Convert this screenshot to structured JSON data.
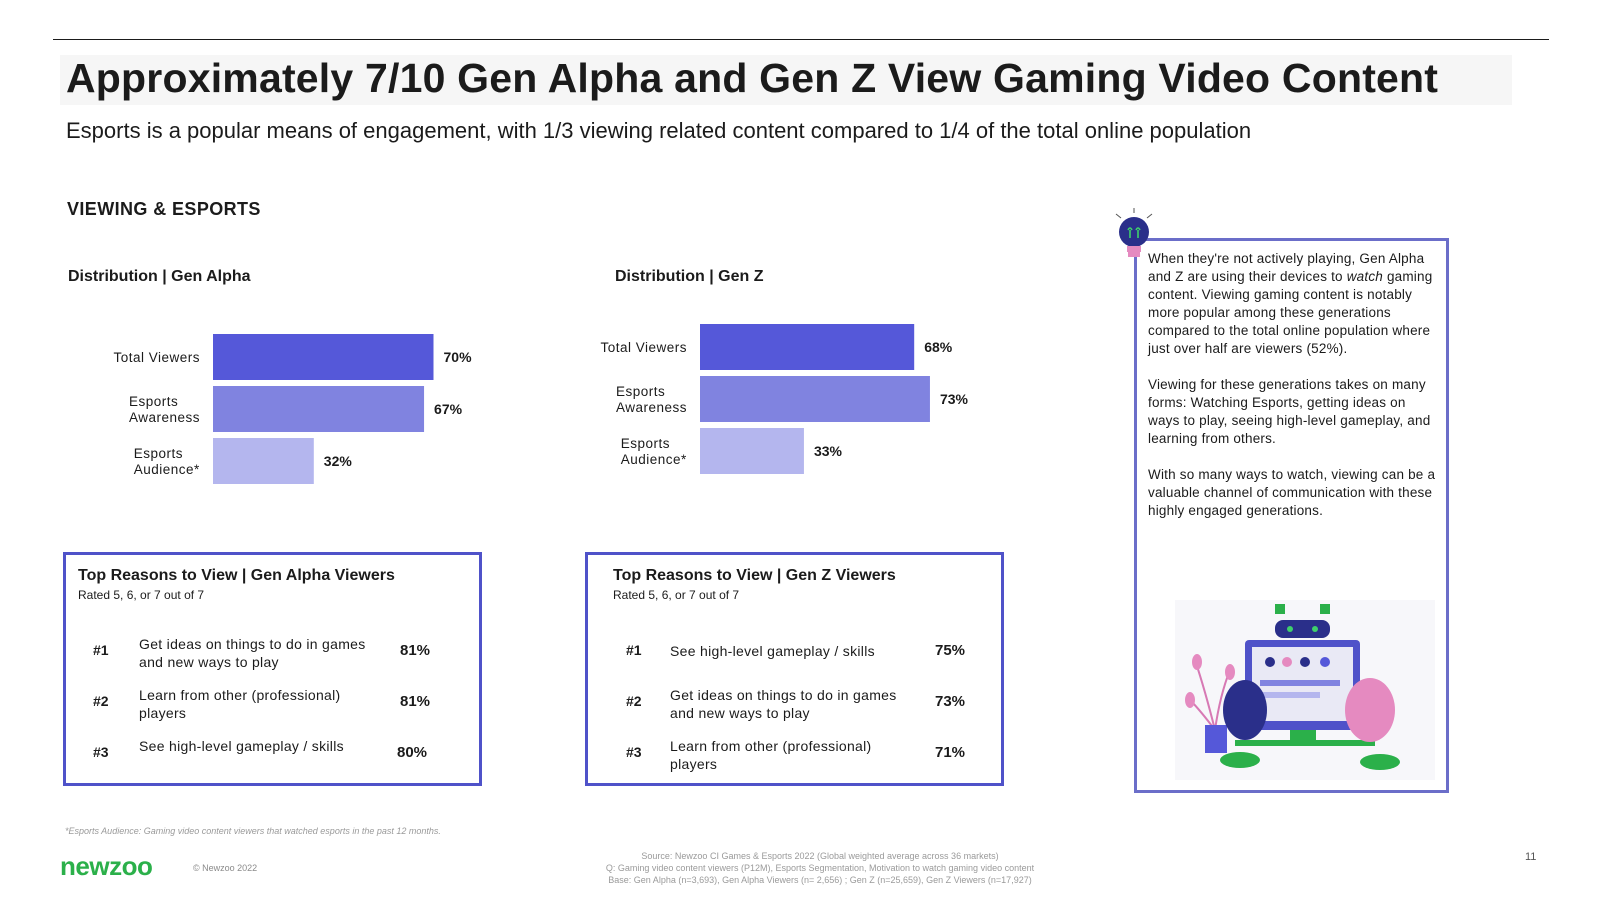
{
  "header": {
    "title": "Approximately 7/10 Gen Alpha and Gen Z View Gaming Video Content",
    "subtitle": "Esports is a popular means of engagement, with 1/3 viewing related content compared to 1/4 of the total online population"
  },
  "section_label": "VIEWING & ESPORTS",
  "colors": {
    "accent": "#5558d9",
    "mid": "#8083e0",
    "light": "#b4b6ee",
    "border": "#4f52c9",
    "brand_green": "#2bb04a"
  },
  "chart_data": [
    {
      "type": "bar",
      "orientation": "horizontal",
      "title": "Distribution | Gen Alpha",
      "categories": [
        "Total Viewers",
        "Esports Awareness",
        "Esports Audience*"
      ],
      "values": [
        70,
        67,
        32
      ],
      "value_labels": [
        "70%",
        "67%",
        "32%"
      ],
      "xlim": [
        0,
        100
      ]
    },
    {
      "type": "bar",
      "orientation": "horizontal",
      "title": "Distribution | Gen Z",
      "categories": [
        "Total Viewers",
        "Esports Awareness",
        "Esports Audience*"
      ],
      "values": [
        68,
        73,
        33
      ],
      "value_labels": [
        "68%",
        "73%",
        "33%"
      ],
      "xlim": [
        0,
        100
      ]
    }
  ],
  "reasons": [
    {
      "title": "Top Reasons to View | Gen Alpha Viewers",
      "subtitle": "Rated 5, 6, or 7 out of 7",
      "rows": [
        {
          "rank": "#1",
          "text": "Get ideas on things to do in games and new ways to play",
          "value": "81%"
        },
        {
          "rank": "#2",
          "text": "Learn from other (professional) players",
          "value": "81%"
        },
        {
          "rank": "#3",
          "text": "See high-level gameplay / skills",
          "value": "80%"
        }
      ]
    },
    {
      "title": "Top Reasons to View | Gen Z Viewers",
      "subtitle": "Rated 5, 6, or 7 out of 7",
      "rows": [
        {
          "rank": "#1",
          "text": "See high-level gameplay / skills",
          "value": "75%"
        },
        {
          "rank": "#2",
          "text": "Get ideas on things to do in games and new ways to play",
          "value": "73%"
        },
        {
          "rank": "#3",
          "text": "Learn from other (professional) players",
          "value": "71%"
        }
      ]
    }
  ],
  "sidebar": {
    "p1_a": "When they're not actively playing, Gen Alpha and Z are using their devices to ",
    "p1_em": "watch",
    "p1_b": " gaming content. Viewing gaming content is notably more popular among these generations compared to the total online population where just over half are viewers (52%).",
    "p2": "Viewing for these generations takes on many forms: Watching Esports, getting ideas on ways to play, seeing high-level gameplay, and learning from others.",
    "p3": "With so many ways to watch, viewing can be a valuable channel of communication with these highly engaged generations."
  },
  "footer": {
    "footnote": "*Esports Audience: Gaming video content viewers that watched esports in the past 12 months.",
    "source_line1": "Source: Newzoo CI Games & Esports 2022 (Global weighted average across 36 markets)",
    "source_line2": "Q: Gaming video content viewers (P12M), Esports Segmentation, Motivation to watch gaming video content",
    "source_line3": "Base: Gen Alpha (n=3,693), Gen Alpha Viewers (n= 2,656) ; Gen Z (n=25,659), Gen Z Viewers (n=17,927)",
    "logo": "newzoo",
    "copyright": "© Newzoo 2022",
    "page_number": "11"
  }
}
